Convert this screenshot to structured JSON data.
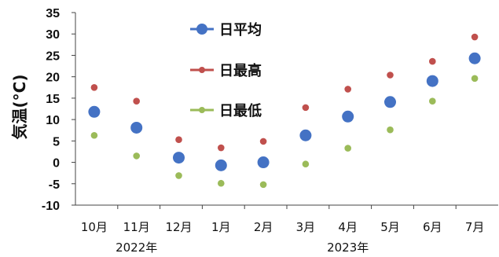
{
  "chart_data": {
    "type": "scatter",
    "title": "",
    "ylabel": "気温(°C)",
    "xlabel": "",
    "ylim": [
      -10,
      35
    ],
    "yticks": [
      35,
      30,
      25,
      20,
      15,
      10,
      5,
      0,
      -5,
      -10
    ],
    "categories": [
      "10月",
      "11月",
      "12月",
      "1月",
      "2月",
      "3月",
      "4月",
      "5月",
      "6月",
      "7月"
    ],
    "year_labels": [
      {
        "label": "2022年",
        "under": "11月"
      },
      {
        "label": "2023年",
        "under": "4月"
      }
    ],
    "series": [
      {
        "name": "日平均",
        "color": "#4472C4",
        "marker": "large",
        "values": [
          11.8,
          8.1,
          1.1,
          -0.7,
          0.0,
          6.3,
          10.7,
          14.1,
          19.0,
          24.3
        ]
      },
      {
        "name": "日最高",
        "color": "#C0504D",
        "marker": "small",
        "values": [
          17.5,
          14.3,
          5.3,
          3.4,
          4.9,
          12.8,
          17.1,
          20.4,
          23.6,
          29.3
        ]
      },
      {
        "name": "日最低",
        "color": "#9BBB59",
        "marker": "small",
        "values": [
          6.3,
          1.5,
          -3.1,
          -4.9,
          -5.2,
          -0.4,
          3.3,
          7.6,
          14.3,
          19.6
        ]
      }
    ],
    "grid": false,
    "legend_position": "top-center"
  }
}
